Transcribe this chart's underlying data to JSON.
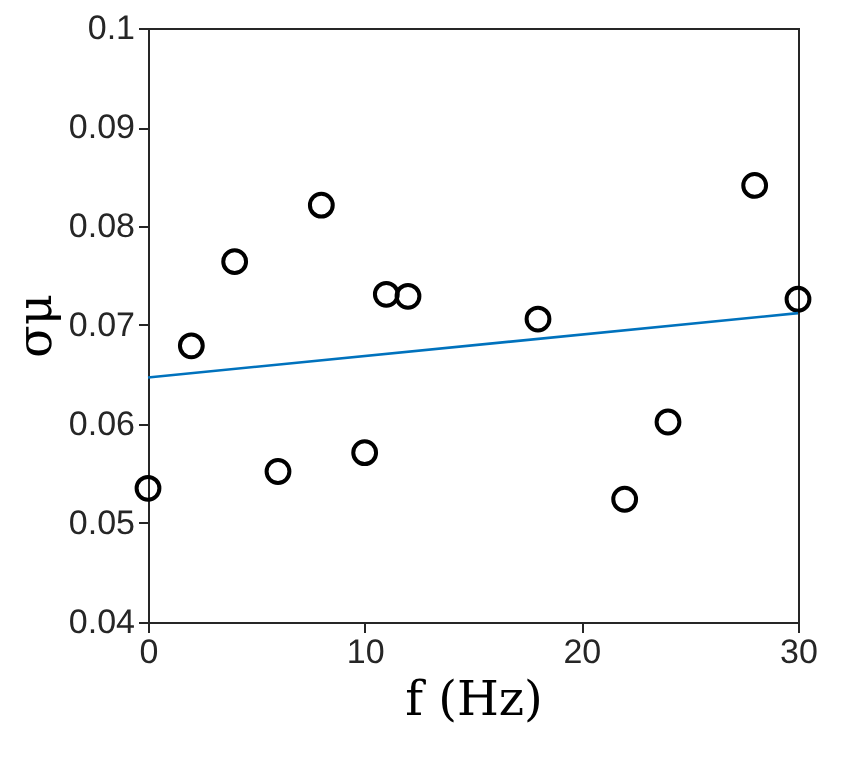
{
  "chart_data": {
    "type": "scatter",
    "xlabel": "f (Hz)",
    "ylabel": "σμ",
    "xlim": [
      0,
      30
    ],
    "ylim": [
      0.04,
      0.1
    ],
    "xticks": [
      0,
      10,
      20,
      30
    ],
    "yticks": [
      0.04,
      0.05,
      0.06,
      0.07,
      0.08,
      0.09,
      0.1
    ],
    "grid": false,
    "series": [
      {
        "marker": "circle",
        "color": "#000000",
        "x": [
          0,
          2,
          4,
          6,
          8,
          10,
          11,
          12,
          18,
          22,
          24,
          28,
          30
        ],
        "values": [
          0.0535,
          0.0679,
          0.0764,
          0.0552,
          0.0821,
          0.0571,
          0.0731,
          0.0729,
          0.0706,
          0.0524,
          0.0602,
          0.0841,
          0.0726
        ]
      },
      {
        "type": "line",
        "marker": "none",
        "color": "#0072bd",
        "line_style": "solid",
        "x": [
          0,
          30
        ],
        "values": [
          0.0647,
          0.0712
        ]
      }
    ]
  }
}
